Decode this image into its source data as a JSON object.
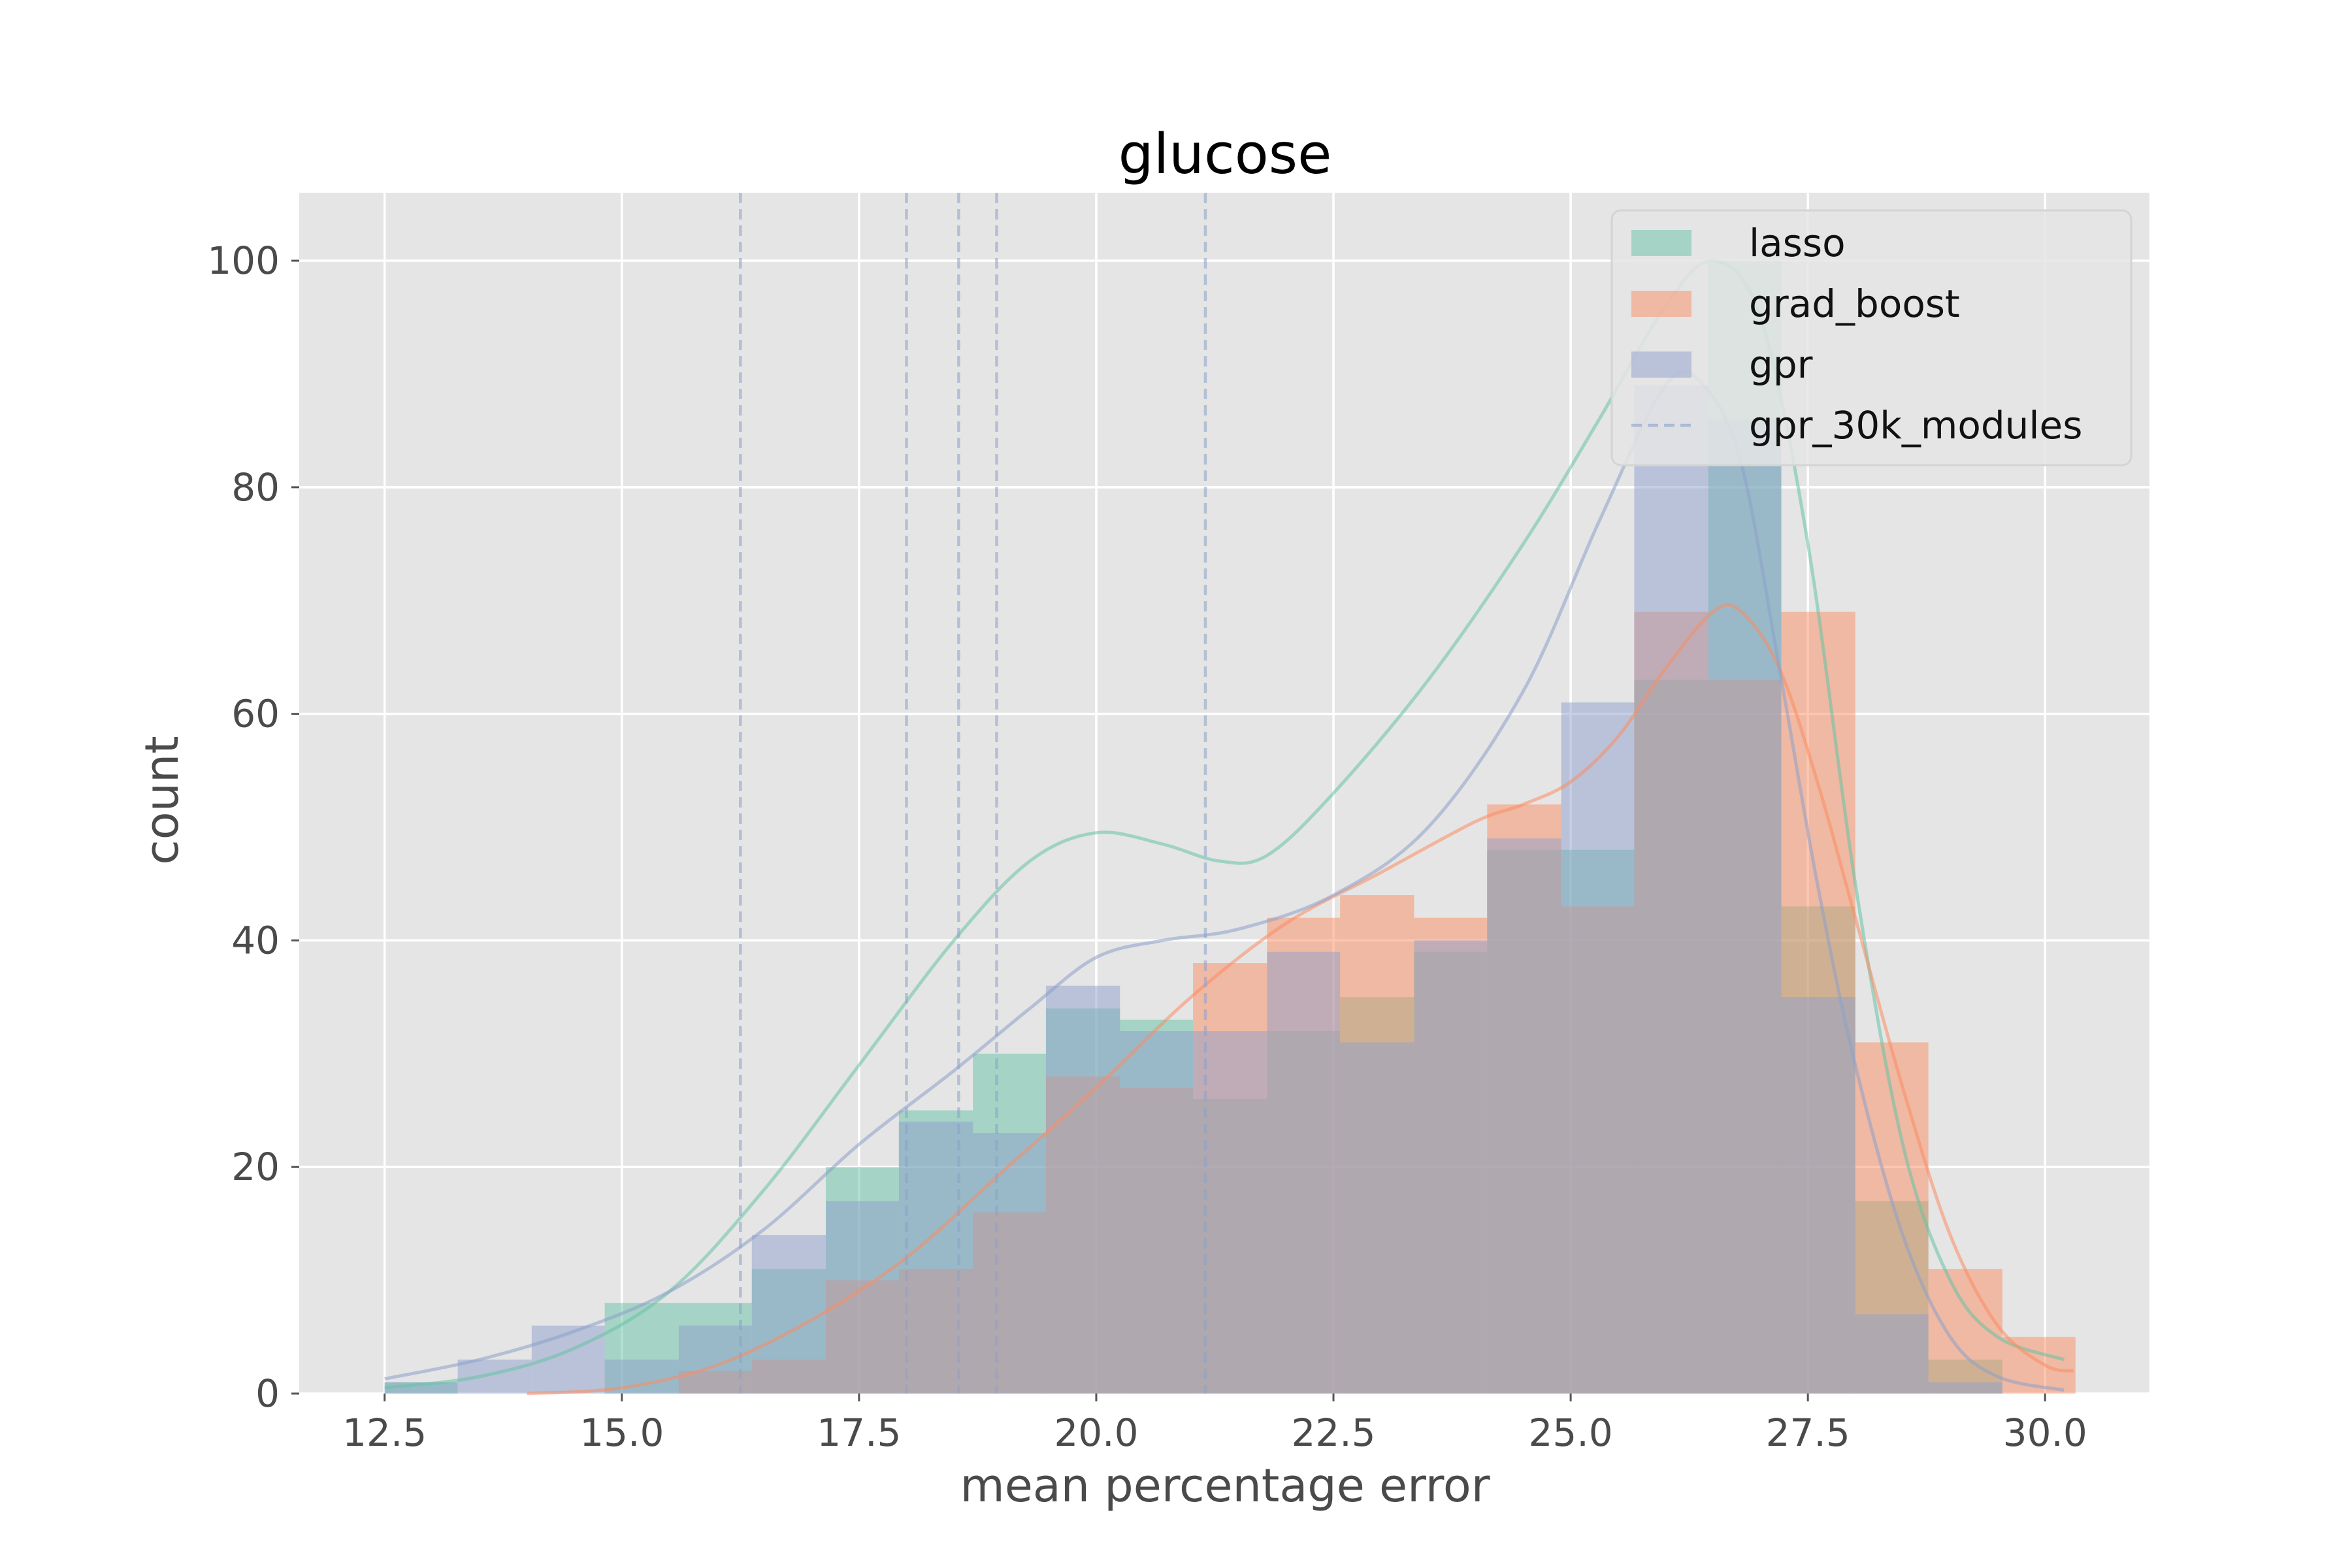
{
  "chart_data": {
    "type": "bar",
    "title": "glucose",
    "xlabel": "mean percentage error",
    "ylabel": "count",
    "xlim": [
      11.6,
      31.1
    ],
    "ylim": [
      0,
      106
    ],
    "xticks": [
      "12.5",
      "15.0",
      "17.5",
      "20.0",
      "22.5",
      "25.0",
      "27.5",
      "30.0"
    ],
    "xtick_values": [
      12.5,
      15.0,
      17.5,
      20.0,
      22.5,
      25.0,
      27.5,
      30.0
    ],
    "yticks": [
      "0",
      "20",
      "40",
      "60",
      "80",
      "100"
    ],
    "ytick_values": [
      0,
      20,
      40,
      60,
      80,
      100
    ],
    "grid": true,
    "legend_position": "top-right",
    "colors": {
      "lasso": "#66c2a5",
      "grad_boost": "#fc8d62",
      "gpr": "#8da0cb",
      "background": "#e5e5e5",
      "grid": "#ffffff"
    },
    "series": [
      {
        "name": "lasso",
        "type": "histogram",
        "bins": [
          {
            "x0": 12.5,
            "x1": 13.27,
            "count": 1
          },
          {
            "x0": 13.27,
            "x1": 14.05,
            "count": 0
          },
          {
            "x0": 14.05,
            "x1": 14.82,
            "count": 0
          },
          {
            "x0": 14.82,
            "x1": 15.6,
            "count": 8
          },
          {
            "x0": 15.6,
            "x1": 16.37,
            "count": 8
          },
          {
            "x0": 16.37,
            "x1": 17.15,
            "count": 11
          },
          {
            "x0": 17.15,
            "x1": 17.92,
            "count": 20
          },
          {
            "x0": 17.92,
            "x1": 18.7,
            "count": 25
          },
          {
            "x0": 18.7,
            "x1": 19.47,
            "count": 30
          },
          {
            "x0": 19.47,
            "x1": 20.25,
            "count": 34
          },
          {
            "x0": 20.25,
            "x1": 21.02,
            "count": 33
          },
          {
            "x0": 21.02,
            "x1": 21.8,
            "count": 26
          },
          {
            "x0": 21.8,
            "x1": 22.57,
            "count": 32
          },
          {
            "x0": 22.57,
            "x1": 23.35,
            "count": 35
          },
          {
            "x0": 23.35,
            "x1": 24.12,
            "count": 39
          },
          {
            "x0": 24.12,
            "x1": 24.9,
            "count": 48
          },
          {
            "x0": 24.9,
            "x1": 25.67,
            "count": 48
          },
          {
            "x0": 25.67,
            "x1": 26.45,
            "count": 63
          },
          {
            "x0": 26.45,
            "x1": 27.22,
            "count": 100
          },
          {
            "x0": 27.22,
            "x1": 28.0,
            "count": 43
          },
          {
            "x0": 28.0,
            "x1": 28.77,
            "count": 17
          },
          {
            "x0": 28.77,
            "x1": 29.55,
            "count": 3
          },
          {
            "x0": 29.55,
            "x1": 30.32,
            "count": 0
          }
        ],
        "kde": [
          [
            12.5,
            0.5
          ],
          [
            13.5,
            1.5
          ],
          [
            14.5,
            4
          ],
          [
            15.5,
            9
          ],
          [
            16.5,
            18
          ],
          [
            17.5,
            29
          ],
          [
            18.5,
            40
          ],
          [
            19.3,
            47
          ],
          [
            20.0,
            49.5
          ],
          [
            20.7,
            48.5
          ],
          [
            21.3,
            47
          ],
          [
            21.8,
            47.5
          ],
          [
            22.5,
            53
          ],
          [
            23.5,
            63
          ],
          [
            24.5,
            75
          ],
          [
            25.3,
            86
          ],
          [
            26.0,
            96
          ],
          [
            26.5,
            100
          ],
          [
            27.0,
            95
          ],
          [
            27.5,
            75
          ],
          [
            28.0,
            45
          ],
          [
            28.5,
            22
          ],
          [
            29.0,
            10
          ],
          [
            29.5,
            5
          ],
          [
            30.2,
            3
          ]
        ]
      },
      {
        "name": "grad_boost",
        "type": "histogram",
        "bins": [
          {
            "x0": 12.5,
            "x1": 13.27,
            "count": 0
          },
          {
            "x0": 13.27,
            "x1": 14.05,
            "count": 0
          },
          {
            "x0": 14.05,
            "x1": 14.82,
            "count": 0
          },
          {
            "x0": 14.82,
            "x1": 15.6,
            "count": 0
          },
          {
            "x0": 15.6,
            "x1": 16.37,
            "count": 2
          },
          {
            "x0": 16.37,
            "x1": 17.15,
            "count": 3
          },
          {
            "x0": 17.15,
            "x1": 17.92,
            "count": 10
          },
          {
            "x0": 17.92,
            "x1": 18.7,
            "count": 11
          },
          {
            "x0": 18.7,
            "x1": 19.47,
            "count": 16
          },
          {
            "x0": 19.47,
            "x1": 20.25,
            "count": 28
          },
          {
            "x0": 20.25,
            "x1": 21.02,
            "count": 27
          },
          {
            "x0": 21.02,
            "x1": 21.8,
            "count": 38
          },
          {
            "x0": 21.8,
            "x1": 22.57,
            "count": 42
          },
          {
            "x0": 22.57,
            "x1": 23.35,
            "count": 44
          },
          {
            "x0": 23.35,
            "x1": 24.12,
            "count": 42
          },
          {
            "x0": 24.12,
            "x1": 24.9,
            "count": 52
          },
          {
            "x0": 24.9,
            "x1": 25.67,
            "count": 43
          },
          {
            "x0": 25.67,
            "x1": 26.45,
            "count": 69
          },
          {
            "x0": 26.45,
            "x1": 27.22,
            "count": 63
          },
          {
            "x0": 27.22,
            "x1": 28.0,
            "count": 69
          },
          {
            "x0": 28.0,
            "x1": 28.77,
            "count": 31
          },
          {
            "x0": 28.77,
            "x1": 29.55,
            "count": 11
          },
          {
            "x0": 29.55,
            "x1": 30.32,
            "count": 5
          }
        ],
        "kde": [
          [
            14.0,
            0
          ],
          [
            15.0,
            0.5
          ],
          [
            16.0,
            2.5
          ],
          [
            17.0,
            6.5
          ],
          [
            18.0,
            12
          ],
          [
            19.0,
            19.5
          ],
          [
            20.0,
            27
          ],
          [
            21.0,
            35
          ],
          [
            22.0,
            41.5
          ],
          [
            23.0,
            46
          ],
          [
            24.0,
            50.5
          ],
          [
            24.5,
            52
          ],
          [
            25.0,
            54
          ],
          [
            25.5,
            58
          ],
          [
            26.0,
            64
          ],
          [
            26.5,
            69
          ],
          [
            26.8,
            69
          ],
          [
            27.2,
            64
          ],
          [
            27.6,
            54
          ],
          [
            28.0,
            42
          ],
          [
            28.5,
            27
          ],
          [
            29.0,
            14
          ],
          [
            29.5,
            6
          ],
          [
            30.0,
            2.5
          ],
          [
            30.3,
            2
          ]
        ]
      },
      {
        "name": "gpr",
        "type": "histogram",
        "bins": [
          {
            "x0": 12.5,
            "x1": 13.27,
            "count": 1
          },
          {
            "x0": 13.27,
            "x1": 14.05,
            "count": 3
          },
          {
            "x0": 14.05,
            "x1": 14.82,
            "count": 6
          },
          {
            "x0": 14.82,
            "x1": 15.6,
            "count": 3
          },
          {
            "x0": 15.6,
            "x1": 16.37,
            "count": 6
          },
          {
            "x0": 16.37,
            "x1": 17.15,
            "count": 14
          },
          {
            "x0": 17.15,
            "x1": 17.92,
            "count": 17
          },
          {
            "x0": 17.92,
            "x1": 18.7,
            "count": 24
          },
          {
            "x0": 18.7,
            "x1": 19.47,
            "count": 23
          },
          {
            "x0": 19.47,
            "x1": 20.25,
            "count": 36
          },
          {
            "x0": 20.25,
            "x1": 21.02,
            "count": 32
          },
          {
            "x0": 21.02,
            "x1": 21.8,
            "count": 32
          },
          {
            "x0": 21.8,
            "x1": 22.57,
            "count": 39
          },
          {
            "x0": 22.57,
            "x1": 23.35,
            "count": 31
          },
          {
            "x0": 23.35,
            "x1": 24.12,
            "count": 40
          },
          {
            "x0": 24.12,
            "x1": 24.9,
            "count": 49
          },
          {
            "x0": 24.9,
            "x1": 25.67,
            "count": 61
          },
          {
            "x0": 25.67,
            "x1": 26.45,
            "count": 89
          },
          {
            "x0": 26.45,
            "x1": 27.22,
            "count": 86
          },
          {
            "x0": 27.22,
            "x1": 28.0,
            "count": 35
          },
          {
            "x0": 28.0,
            "x1": 28.77,
            "count": 7
          },
          {
            "x0": 28.77,
            "x1": 29.55,
            "count": 1
          },
          {
            "x0": 29.55,
            "x1": 30.32,
            "count": 0
          }
        ],
        "kde": [
          [
            12.5,
            1.3
          ],
          [
            13.5,
            3
          ],
          [
            14.5,
            5.5
          ],
          [
            15.5,
            9
          ],
          [
            16.5,
            14.5
          ],
          [
            17.5,
            22
          ],
          [
            18.5,
            28.5
          ],
          [
            19.3,
            34
          ],
          [
            20.0,
            38.5
          ],
          [
            20.7,
            40
          ],
          [
            21.5,
            41
          ],
          [
            22.5,
            44
          ],
          [
            23.5,
            50
          ],
          [
            24.5,
            62
          ],
          [
            25.3,
            77
          ],
          [
            26.0,
            89
          ],
          [
            26.4,
            89
          ],
          [
            26.8,
            82
          ],
          [
            27.2,
            64
          ],
          [
            27.6,
            45
          ],
          [
            28.0,
            29
          ],
          [
            28.5,
            14
          ],
          [
            29.0,
            5
          ],
          [
            29.5,
            1.5
          ],
          [
            30.2,
            0.3
          ]
        ]
      }
    ],
    "reference_lines": {
      "name": "gpr_30k_modules",
      "style": "dashed",
      "x": [
        16.25,
        18.0,
        18.55,
        18.95,
        21.15
      ]
    }
  }
}
